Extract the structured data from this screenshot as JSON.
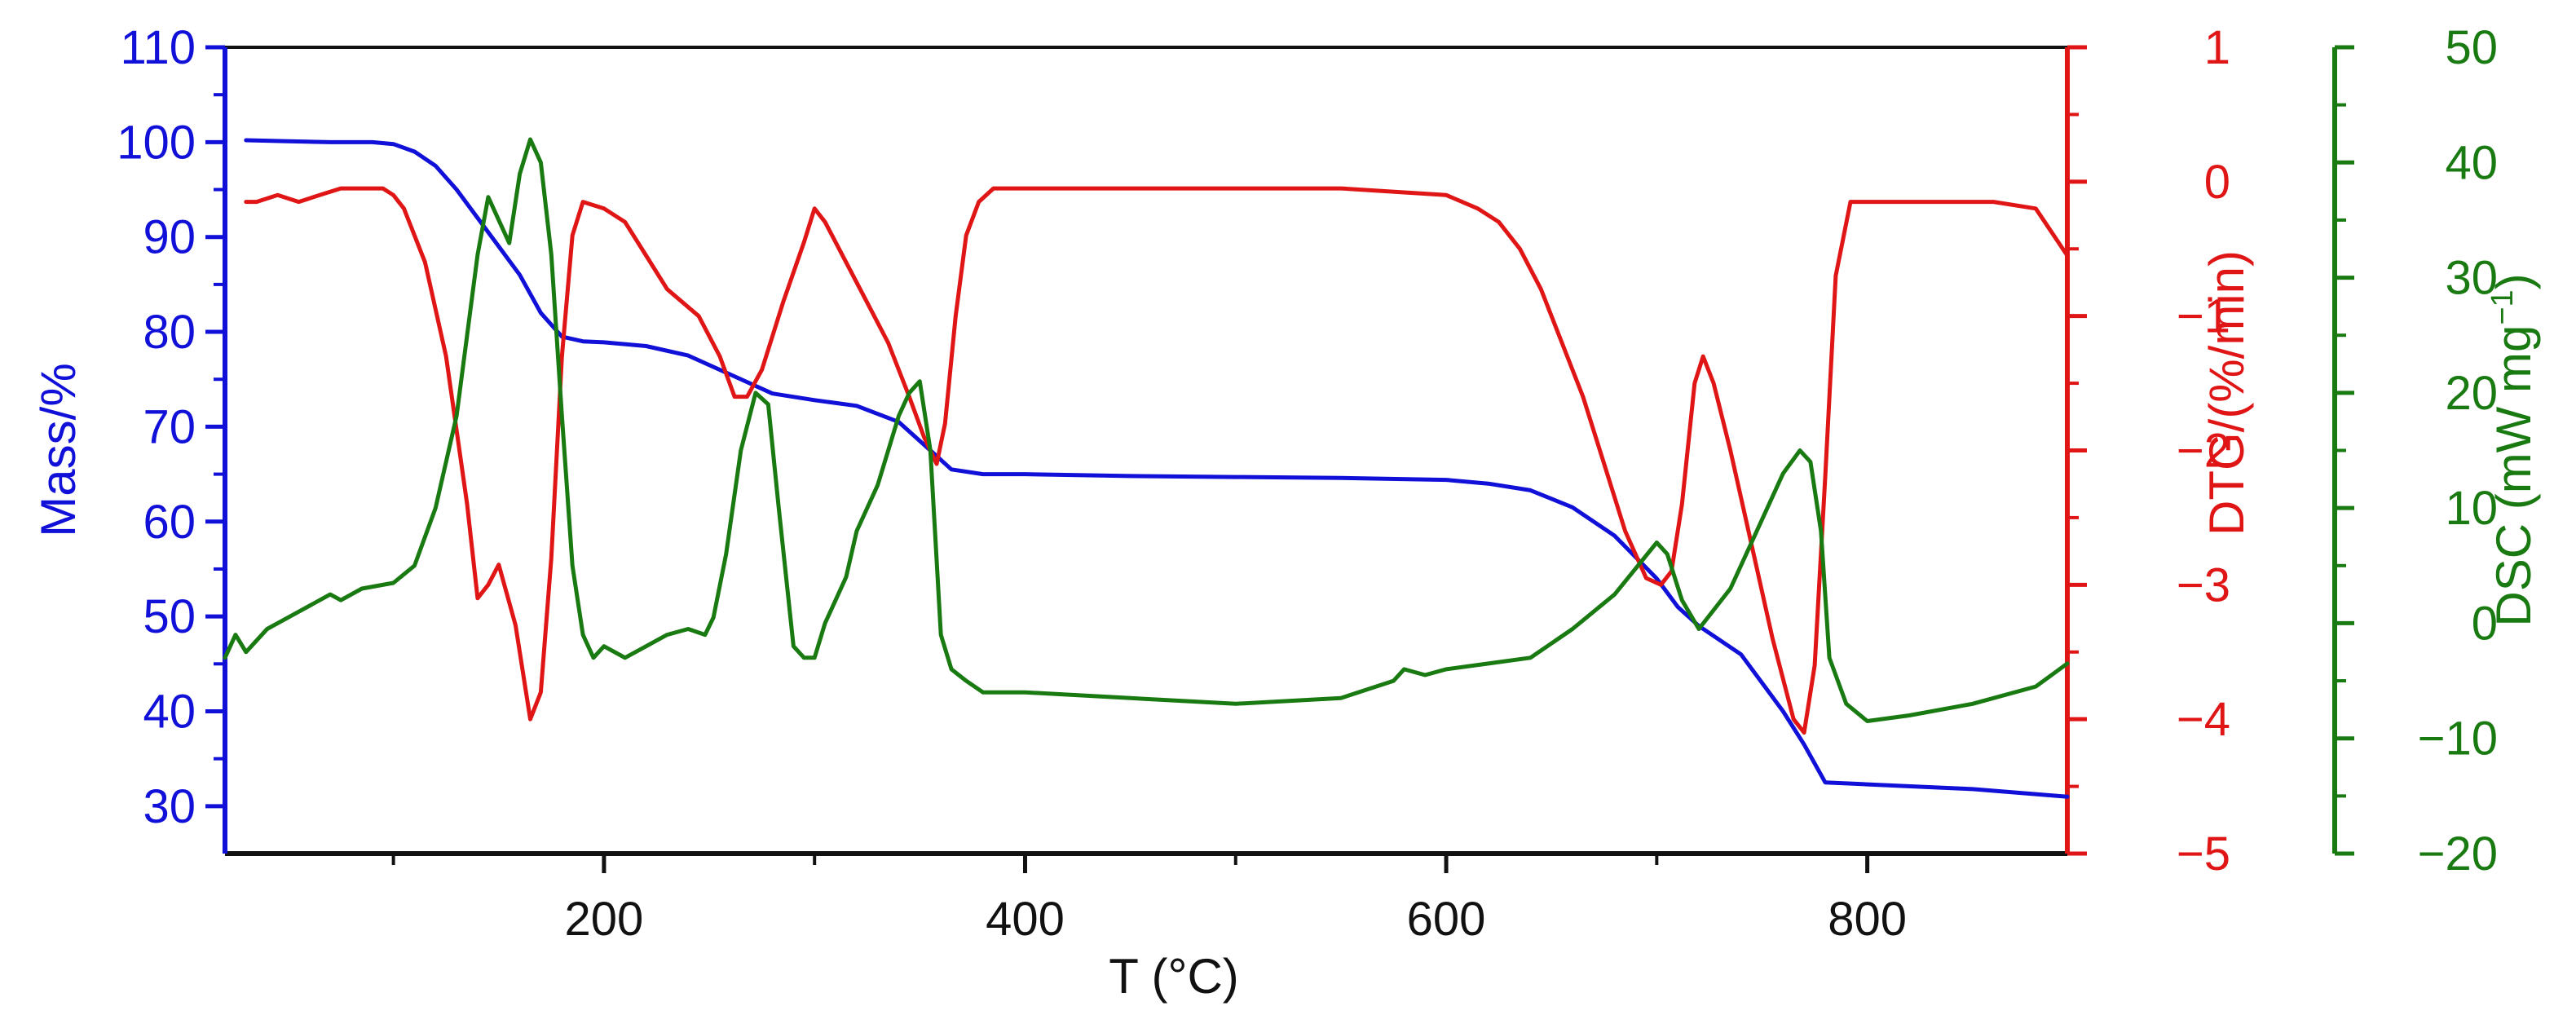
{
  "chart_data": {
    "type": "line",
    "xlabel": "T (°C)",
    "xlim": [
      20,
      895
    ],
    "xticks": [
      200,
      400,
      600,
      800
    ],
    "xminor": [
      100,
      300,
      500,
      700
    ],
    "axes": {
      "mass": {
        "label": "Mass/%",
        "color": "#1010d8",
        "ylim": [
          25,
          110
        ],
        "ticks": [
          30,
          40,
          50,
          60,
          70,
          80,
          90,
          100,
          110
        ],
        "minor": [
          35,
          45,
          55,
          65,
          75,
          85,
          95,
          105
        ]
      },
      "dtg": {
        "label": "DTG/(%/min)",
        "color": "#e01515",
        "ylim": [
          -5,
          1
        ],
        "ticks": [
          1,
          0,
          -1,
          -2,
          -3,
          -4,
          -5
        ],
        "tick_labels": [
          "1",
          "0",
          "−1",
          "−2",
          "−3",
          "−4",
          "−5"
        ],
        "minor": [
          0.5,
          -0.5,
          -1.5,
          -2.5,
          -3.5,
          -4.5
        ]
      },
      "dsc": {
        "label_main": "DSC (mW mg",
        "label_sup": "−1",
        "label_end": ")",
        "color": "#1a7a12",
        "ylim": [
          -20,
          50
        ],
        "ticks": [
          50,
          40,
          30,
          20,
          10,
          0,
          -10,
          -20
        ],
        "tick_labels": [
          "50",
          "40",
          "30",
          "20",
          "10",
          "0",
          "−10",
          "−20"
        ],
        "minor": [
          45,
          35,
          25,
          15,
          5,
          -5,
          -15
        ]
      }
    },
    "series": [
      {
        "axis": "mass",
        "x": [
          30,
          50,
          70,
          90,
          100,
          110,
          120,
          130,
          140,
          150,
          160,
          170,
          180,
          190,
          200,
          220,
          240,
          260,
          280,
          300,
          320,
          340,
          355,
          365,
          380,
          400,
          450,
          500,
          550,
          600,
          620,
          640,
          660,
          680,
          700,
          710,
          720,
          740,
          760,
          770,
          780,
          800,
          850,
          895
        ],
        "y": [
          100.2,
          100.1,
          100,
          100,
          99.8,
          99,
          97.5,
          95,
          92,
          89,
          86,
          82,
          79.5,
          79,
          78.9,
          78.5,
          77.5,
          75.5,
          73.5,
          72.8,
          72.2,
          70.5,
          67.5,
          65.5,
          65,
          65,
          64.8,
          64.7,
          64.6,
          64.4,
          64,
          63.3,
          61.5,
          58.5,
          54,
          51,
          49,
          46,
          40,
          36.5,
          32.5,
          32.3,
          31.8,
          31
        ]
      },
      {
        "axis": "dtg",
        "x": [
          30,
          35,
          45,
          55,
          65,
          75,
          85,
          95,
          100,
          105,
          115,
          125,
          135,
          140,
          145,
          150,
          158,
          165,
          170,
          175,
          180,
          185,
          190,
          200,
          210,
          220,
          230,
          245,
          255,
          262,
          268,
          275,
          285,
          295,
          300,
          305,
          315,
          325,
          335,
          345,
          352,
          358,
          362,
          367,
          372,
          378,
          385,
          400,
          450,
          500,
          550,
          600,
          615,
          625,
          635,
          645,
          655,
          665,
          675,
          685,
          695,
          702,
          707,
          712,
          718,
          722,
          727,
          735,
          745,
          755,
          765,
          770,
          775,
          780,
          785,
          792,
          800,
          830,
          860,
          880,
          895
        ],
        "y": [
          -0.15,
          -0.15,
          -0.1,
          -0.15,
          -0.1,
          -0.05,
          -0.05,
          -0.05,
          -0.1,
          -0.2,
          -0.6,
          -1.3,
          -2.4,
          -3.1,
          -3.0,
          -2.85,
          -3.3,
          -4.0,
          -3.8,
          -2.8,
          -1.3,
          -0.4,
          -0.15,
          -0.2,
          -0.3,
          -0.55,
          -0.8,
          -1.0,
          -1.3,
          -1.6,
          -1.6,
          -1.4,
          -0.9,
          -0.45,
          -0.2,
          -0.3,
          -0.6,
          -0.9,
          -1.2,
          -1.6,
          -1.9,
          -2.1,
          -1.8,
          -1.0,
          -0.4,
          -0.15,
          -0.05,
          -0.05,
          -0.05,
          -0.05,
          -0.05,
          -0.1,
          -0.2,
          -0.3,
          -0.5,
          -0.8,
          -1.2,
          -1.6,
          -2.1,
          -2.6,
          -2.95,
          -3.0,
          -2.9,
          -2.4,
          -1.5,
          -1.3,
          -1.5,
          -2.0,
          -2.7,
          -3.4,
          -4.0,
          -4.1,
          -3.6,
          -2.2,
          -0.7,
          -0.15,
          -0.15,
          -0.15,
          -0.15,
          -0.2,
          -0.55
        ]
      },
      {
        "axis": "dsc",
        "x": [
          20,
          25,
          30,
          40,
          55,
          70,
          75,
          85,
          100,
          110,
          120,
          130,
          135,
          140,
          145,
          150,
          155,
          160,
          165,
          170,
          175,
          180,
          185,
          190,
          195,
          200,
          210,
          220,
          230,
          240,
          248,
          252,
          258,
          265,
          272,
          278,
          283,
          290,
          295,
          300,
          305,
          310,
          315,
          320,
          330,
          340,
          345,
          350,
          355,
          360,
          365,
          372,
          380,
          400,
          450,
          500,
          550,
          575,
          580,
          590,
          600,
          620,
          640,
          660,
          680,
          700,
          705,
          712,
          720,
          735,
          750,
          760,
          768,
          773,
          778,
          782,
          790,
          800,
          820,
          850,
          880,
          895
        ],
        "y": [
          -3,
          -1,
          -2.5,
          -0.5,
          1,
          2.5,
          2,
          3,
          3.5,
          5,
          10,
          18,
          25,
          32,
          37,
          35,
          33,
          39,
          42,
          40,
          32,
          18,
          5,
          -1,
          -3,
          -2,
          -3,
          -2,
          -1,
          -0.5,
          -1,
          0.5,
          6,
          15,
          20,
          19,
          10,
          -2,
          -3,
          -3,
          0,
          2,
          4,
          8,
          12,
          18,
          20,
          21,
          15,
          -1,
          -4,
          -5,
          -6,
          -6,
          -6.5,
          -7,
          -6.5,
          -5,
          -4,
          -4.5,
          -4,
          -3.5,
          -3,
          -0.5,
          2.5,
          7,
          6,
          2,
          -0.5,
          3,
          9,
          13,
          15,
          14,
          8,
          -3,
          -7,
          -8.5,
          -8,
          -7,
          -5.5,
          -3.5
        ]
      }
    ]
  }
}
